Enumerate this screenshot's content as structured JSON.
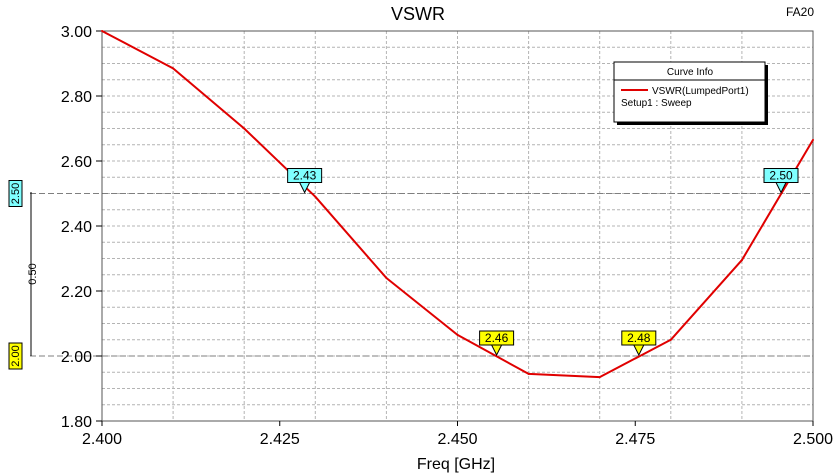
{
  "corner_label": "FA20",
  "chart_data": {
    "type": "line",
    "title": "VSWR",
    "xlabel": "Freq [GHz]",
    "ylabel": "",
    "xlim": [
      2.4,
      2.5
    ],
    "ylim": [
      1.8,
      3.0
    ],
    "x_ticks": [
      "2.400",
      "2.425",
      "2.450",
      "2.475",
      "2.500"
    ],
    "y_ticks": [
      "1.80",
      "2.00",
      "2.20",
      "2.40",
      "2.60",
      "2.80",
      "3.00"
    ],
    "series": [
      {
        "name": "VSWR(LumpedPort1)",
        "color": "#e00000",
        "x": [
          2.4,
          2.41,
          2.42,
          2.43,
          2.44,
          2.45,
          2.46,
          2.47,
          2.48,
          2.49,
          2.5
        ],
        "y": [
          3.0,
          2.885,
          2.7,
          2.49,
          2.24,
          2.065,
          1.945,
          1.935,
          2.05,
          2.295,
          2.665
        ]
      }
    ],
    "legend": {
      "title": "Curve Info",
      "entries": [
        "VSWR(LumpedPort1)"
      ],
      "subtitle": "Setup1 : Sweep",
      "placement": "top-right"
    },
    "markers": [
      {
        "label": "2.43",
        "x": 2.4285,
        "y": 2.5,
        "color": "#7fffff"
      },
      {
        "label": "2.46",
        "x": 2.4555,
        "y": 2.0,
        "color": "#ffff00"
      },
      {
        "label": "2.48",
        "x": 2.4755,
        "y": 2.0,
        "color": "#ffff00"
      },
      {
        "label": "2.50",
        "x": 2.4955,
        "y": 2.5,
        "color": "#7fffff"
      }
    ],
    "reference_lines": [
      {
        "label": "2.50",
        "y": 2.5,
        "color": "#7fffff"
      },
      {
        "label": "2.00",
        "y": 2.0,
        "color": "#ffff00"
      }
    ],
    "delta_label": "0.50",
    "grid": true
  }
}
